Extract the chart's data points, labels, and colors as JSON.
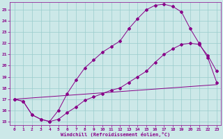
{
  "xlabel": "Windchill (Refroidissement éolien,°C)",
  "bg_color": "#cce8e8",
  "line_color": "#880088",
  "grid_color": "#99cccc",
  "xlim": [
    -0.5,
    23.5
  ],
  "ylim": [
    14.7,
    25.7
  ],
  "yticks": [
    15,
    16,
    17,
    18,
    19,
    20,
    21,
    22,
    23,
    24,
    25
  ],
  "xticks": [
    0,
    1,
    2,
    3,
    4,
    5,
    6,
    7,
    8,
    9,
    10,
    11,
    12,
    13,
    14,
    15,
    16,
    17,
    18,
    19,
    20,
    21,
    22,
    23
  ],
  "line1_x": [
    0,
    1,
    2,
    3,
    4,
    5,
    6,
    7,
    8,
    9,
    10,
    11,
    12,
    13,
    14,
    15,
    16,
    17,
    18,
    19,
    20,
    21,
    22,
    23
  ],
  "line1_y": [
    17.0,
    16.8,
    15.6,
    15.2,
    15.0,
    16.0,
    17.5,
    18.7,
    19.8,
    20.5,
    21.2,
    21.7,
    22.2,
    23.3,
    24.2,
    25.0,
    25.4,
    25.5,
    25.3,
    24.8,
    23.3,
    22.0,
    20.7,
    18.5
  ],
  "line2_x": [
    0,
    1,
    2,
    3,
    4,
    5,
    6,
    7,
    8,
    9,
    10,
    11,
    12,
    13,
    14,
    15,
    16,
    17,
    18,
    19,
    20,
    21,
    22,
    23
  ],
  "line2_y": [
    17.0,
    16.8,
    15.6,
    15.2,
    15.0,
    15.2,
    15.8,
    16.3,
    16.9,
    17.2,
    17.5,
    17.8,
    18.0,
    18.5,
    19.0,
    19.5,
    20.3,
    21.0,
    21.5,
    21.9,
    22.0,
    21.9,
    20.9,
    19.5
  ],
  "line3_x": [
    0,
    23
  ],
  "line3_y": [
    17.0,
    18.3
  ]
}
